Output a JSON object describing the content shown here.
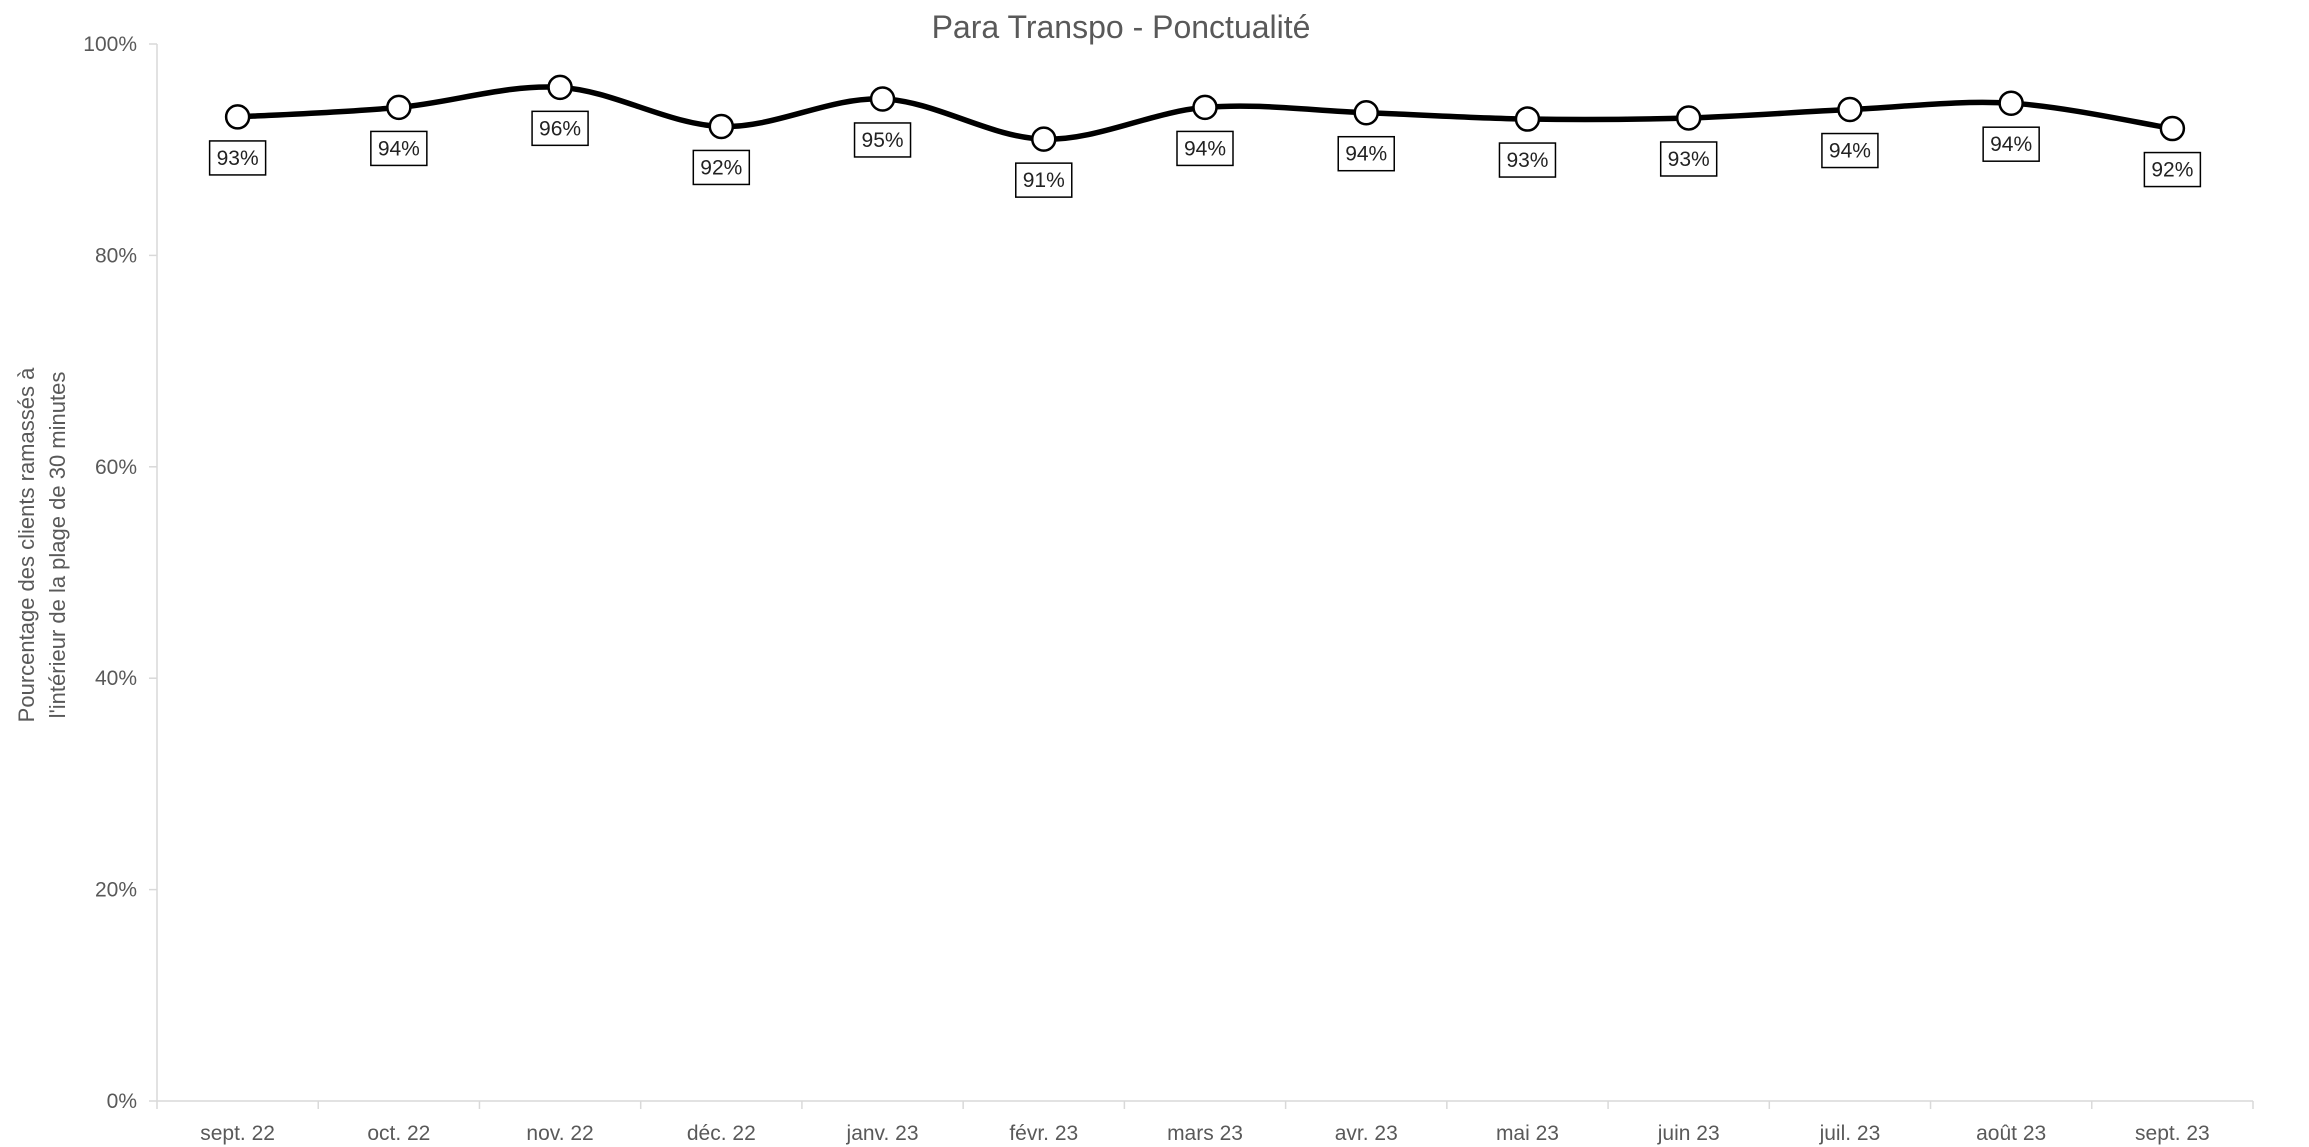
{
  "chart_data": {
    "type": "line",
    "title": "Para Transpo - Ponctualité",
    "xlabel": "",
    "ylabel_lines": [
      "Pourcentage des clients ramassés à",
      "l'intérieur de la plage de 30 minutes"
    ],
    "categories": [
      "sept. 22",
      "oct. 22",
      "nov. 22",
      "déc. 22",
      "janv. 23",
      "févr. 23",
      "mars 23",
      "avr. 23",
      "mai 23",
      "juin 23",
      "juil. 23",
      "août 23",
      "sept. 23"
    ],
    "series": [
      {
        "values": [
          93.1,
          94.0,
          95.9,
          92.2,
          94.8,
          91.0,
          94.0,
          93.5,
          92.9,
          93.0,
          93.8,
          94.4,
          92.0
        ],
        "labels": [
          "93%",
          "94%",
          "96%",
          "92%",
          "95%",
          "91%",
          "94%",
          "94%",
          "93%",
          "93%",
          "94%",
          "94%",
          "92%"
        ],
        "label_position": [
          "below",
          "below",
          "below",
          "below",
          "below",
          "below",
          "below",
          "below",
          "below",
          "below",
          "below",
          "below",
          "below"
        ]
      }
    ],
    "ylim": [
      0,
      100
    ],
    "y_ticks": [
      0,
      20,
      40,
      60,
      80,
      100
    ],
    "y_tick_labels": [
      "0%",
      "20%",
      "40%",
      "60%",
      "80%",
      "100%"
    ],
    "grid": false,
    "smooth": true,
    "line_color": "#000000",
    "marker": "open-circle",
    "legend": "none"
  }
}
